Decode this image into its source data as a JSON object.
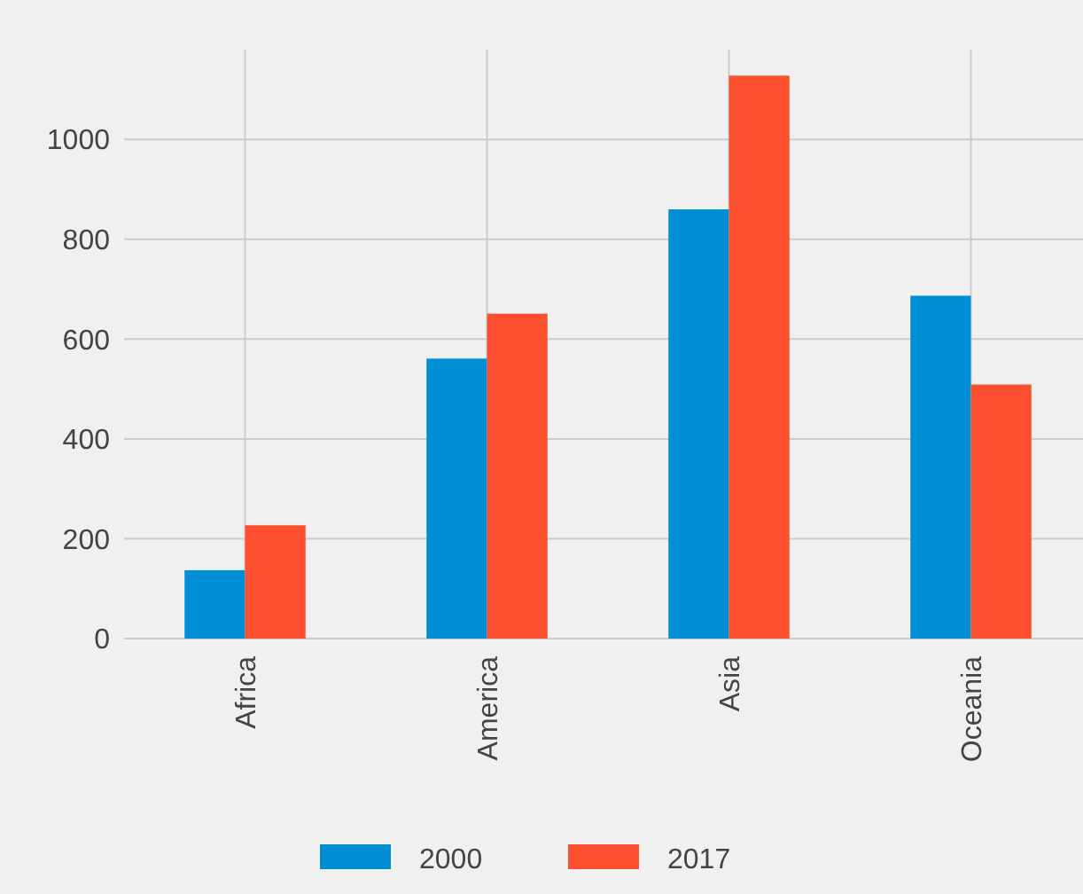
{
  "chart_data": {
    "type": "bar",
    "categories": [
      "Africa",
      "America",
      "Asia",
      "Oceania"
    ],
    "series": [
      {
        "name": "2000",
        "color": "#008fd5",
        "values": [
          137,
          561,
          860,
          687
        ]
      },
      {
        "name": "2017",
        "color": "#fc4f30",
        "values": [
          227,
          651,
          1128,
          509
        ]
      }
    ],
    "ylim": [
      0,
      1180
    ],
    "yticks": [
      0,
      200,
      400,
      600,
      800,
      1000
    ],
    "grid": true,
    "legend": "bottom"
  }
}
